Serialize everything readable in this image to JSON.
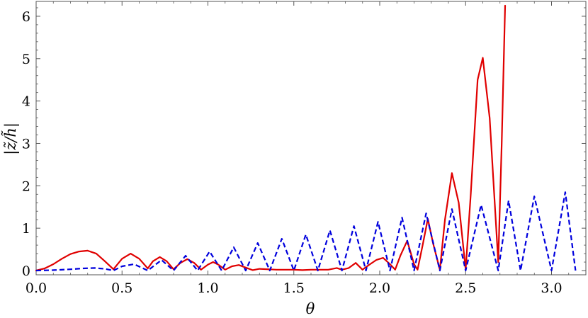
{
  "chart_data": {
    "type": "line",
    "xlabel": "θ",
    "ylabel": "|z̃/h̃|",
    "xlim": [
      0,
      3.2
    ],
    "ylim": [
      -0.1,
      6.35
    ],
    "xticks": [
      "0.0",
      "0.5",
      "1.0",
      "1.5",
      "2.0",
      "2.5",
      "3.0"
    ],
    "yticks": [
      "0",
      "1",
      "2",
      "3",
      "4",
      "5",
      "6"
    ],
    "grid": false,
    "legend": "none",
    "series": [
      {
        "style": "solid",
        "color": "#e00000",
        "x": [
          0.0,
          0.05,
          0.1,
          0.15,
          0.2,
          0.25,
          0.3,
          0.35,
          0.4,
          0.45,
          0.5,
          0.55,
          0.6,
          0.65,
          0.68,
          0.72,
          0.76,
          0.8,
          0.84,
          0.88,
          0.92,
          0.96,
          1.0,
          1.03,
          1.06,
          1.1,
          1.14,
          1.18,
          1.22,
          1.26,
          1.3,
          1.4,
          1.5,
          1.55,
          1.6,
          1.65,
          1.7,
          1.75,
          1.78,
          1.82,
          1.86,
          1.9,
          1.94,
          1.98,
          2.02,
          2.06,
          2.09,
          2.12,
          2.16,
          2.2,
          2.22,
          2.25,
          2.28,
          2.31,
          2.35,
          2.38,
          2.42,
          2.46,
          2.5,
          2.53,
          2.57,
          2.6,
          2.64,
          2.69,
          2.71,
          2.73
        ],
        "y": [
          0.0,
          0.05,
          0.15,
          0.28,
          0.39,
          0.45,
          0.47,
          0.4,
          0.22,
          0.03,
          0.28,
          0.4,
          0.28,
          0.05,
          0.22,
          0.32,
          0.22,
          0.03,
          0.18,
          0.27,
          0.18,
          0.02,
          0.14,
          0.2,
          0.14,
          0.02,
          0.1,
          0.13,
          0.07,
          0.01,
          0.04,
          0.02,
          0.02,
          0.01,
          0.02,
          0.02,
          0.02,
          0.06,
          0.02,
          0.06,
          0.18,
          0.02,
          0.14,
          0.25,
          0.3,
          0.15,
          0.02,
          0.35,
          0.7,
          0.15,
          0.02,
          0.6,
          1.22,
          0.65,
          0.02,
          1.2,
          2.3,
          1.6,
          0.02,
          1.8,
          4.5,
          5.02,
          3.6,
          0.2,
          3.0,
          6.25
        ]
      },
      {
        "style": "dashed",
        "color": "#0000dd",
        "x": [
          0.0,
          0.1,
          0.2,
          0.27,
          0.34,
          0.4,
          0.45,
          0.5,
          0.57,
          0.65,
          0.73,
          0.8,
          0.87,
          0.94,
          1.01,
          1.08,
          1.15,
          1.22,
          1.29,
          1.36,
          1.43,
          1.5,
          1.57,
          1.64,
          1.71,
          1.78,
          1.85,
          1.92,
          1.99,
          2.06,
          2.13,
          2.2,
          2.27,
          2.35,
          2.42,
          2.5,
          2.59,
          2.69,
          2.75,
          2.82,
          2.9,
          3.0,
          3.08,
          3.14
        ],
        "y": [
          0.0,
          0.01,
          0.03,
          0.05,
          0.06,
          0.04,
          0.0,
          0.1,
          0.15,
          0.0,
          0.25,
          0.0,
          0.35,
          0.0,
          0.45,
          0.0,
          0.55,
          0.0,
          0.65,
          0.0,
          0.75,
          0.0,
          0.85,
          0.0,
          0.95,
          0.0,
          1.05,
          0.0,
          1.15,
          0.0,
          1.25,
          0.0,
          1.35,
          0.0,
          1.45,
          0.0,
          1.55,
          0.0,
          1.65,
          0.0,
          1.75,
          0.0,
          1.85,
          0.0
        ]
      }
    ]
  }
}
